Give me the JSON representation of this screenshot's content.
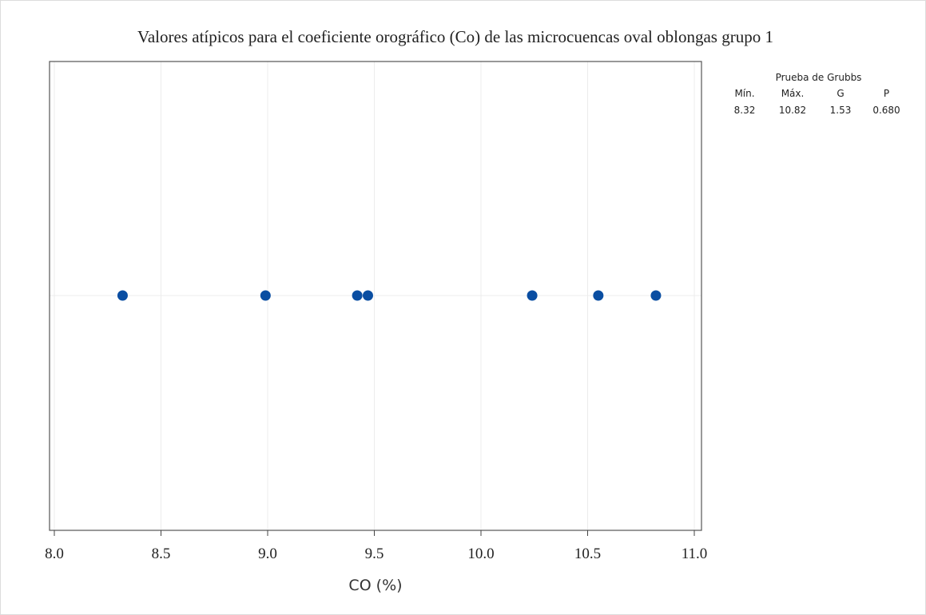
{
  "chart_data": {
    "type": "scatter",
    "title": "Valores atípicos para el coeficiente orográfico (Co) de las microcuencas oval oblongas grupo 1",
    "xlabel": "CO (%)",
    "ylabel": "",
    "xlim": [
      8.0,
      11.0
    ],
    "xticks": [
      "8.0",
      "8.5",
      "9.0",
      "9.5",
      "10.0",
      "10.5",
      "11.0"
    ],
    "xtick_values": [
      8.0,
      8.5,
      9.0,
      9.5,
      10.0,
      10.5,
      11.0
    ],
    "x": [
      8.32,
      8.99,
      9.42,
      9.47,
      10.24,
      10.55,
      10.82
    ],
    "grid": true,
    "point_color": "#0a4ea2"
  },
  "grubbs": {
    "title": "Prueba de Grubbs",
    "headers": [
      "Mín.",
      "Máx.",
      "G",
      "P"
    ],
    "values": [
      "8.32",
      "10.82",
      "1.53",
      "0.680"
    ]
  }
}
